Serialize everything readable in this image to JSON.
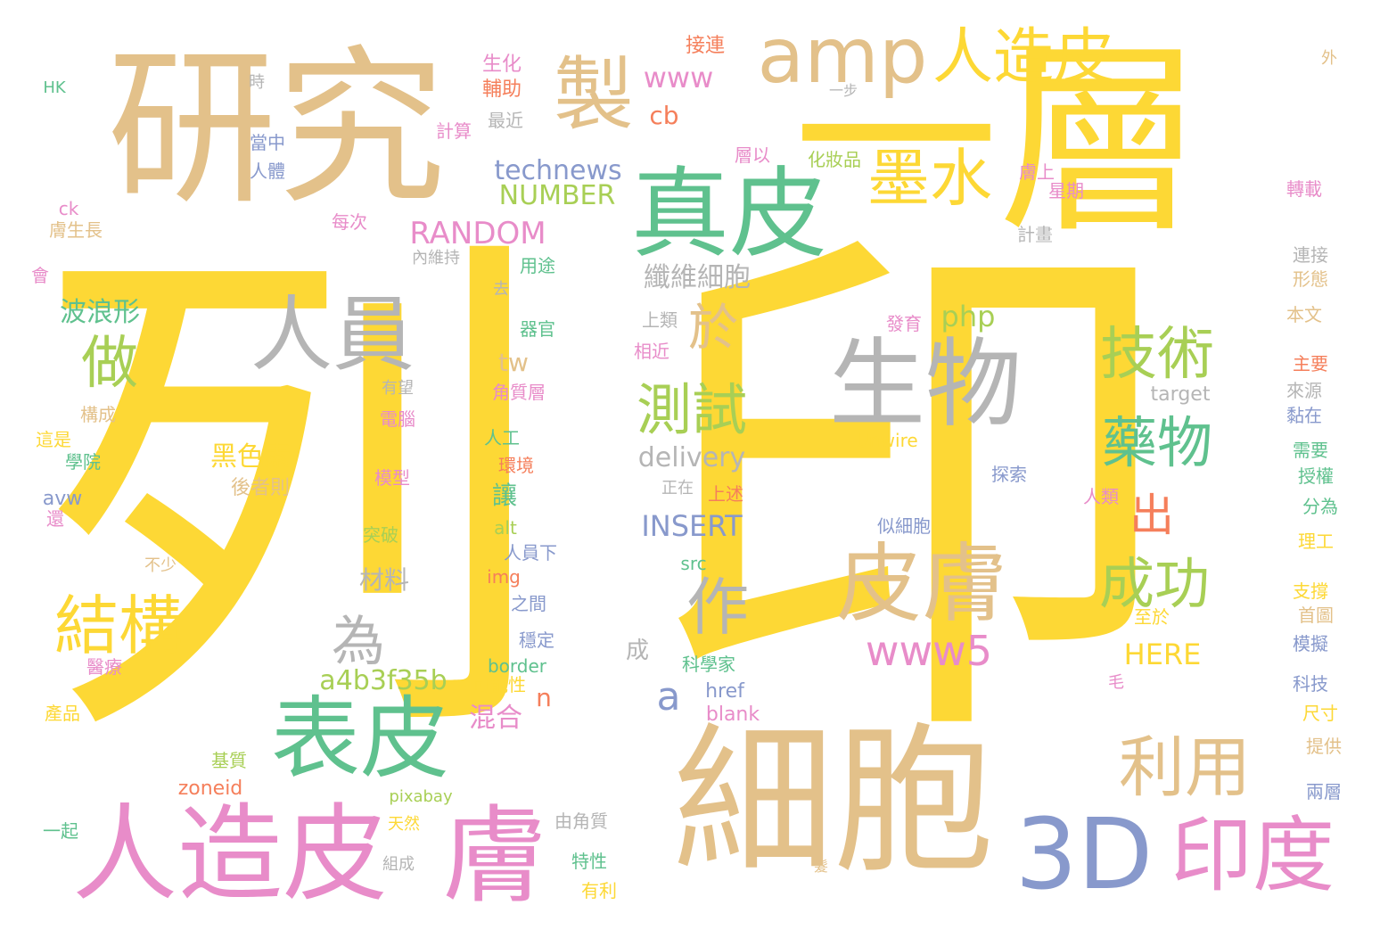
{
  "colors": {
    "yellow": "#fdd835",
    "tan": "#e3c18a",
    "green": "#5fc18e",
    "gray": "#b5b5b5",
    "pink": "#e88cc9",
    "blue": "#8899cc",
    "lime": "#a8cf55",
    "orange": "#f57f5b"
  },
  "words": [
    {
      "text": "列",
      "color": "yellow"
    },
    {
      "text": "印",
      "color": "yellow"
    },
    {
      "text": "一層",
      "color": "yellow"
    },
    {
      "text": "研究",
      "color": "tan"
    },
    {
      "text": "細胞",
      "color": "tan"
    },
    {
      "text": "人造皮",
      "color": "pink"
    },
    {
      "text": "膚",
      "color": "pink"
    },
    {
      "text": "3D",
      "color": "blue"
    },
    {
      "text": "印度",
      "color": "pink"
    },
    {
      "text": "真皮",
      "color": "green"
    },
    {
      "text": "表皮",
      "color": "green"
    },
    {
      "text": "生物",
      "color": "gray"
    },
    {
      "text": "皮膚",
      "color": "tan"
    },
    {
      "text": "製",
      "color": "tan"
    },
    {
      "text": "amp",
      "color": "tan"
    },
    {
      "text": "人造皮",
      "color": "yellow"
    },
    {
      "text": "墨水",
      "color": "yellow"
    },
    {
      "text": "人員",
      "color": "gray"
    },
    {
      "text": "結構",
      "color": "yellow"
    },
    {
      "text": "做",
      "color": "lime"
    },
    {
      "text": "於",
      "color": "tan"
    },
    {
      "text": "測試",
      "color": "lime"
    },
    {
      "text": "技術",
      "color": "lime"
    },
    {
      "text": "藥物",
      "color": "green"
    },
    {
      "text": "成功",
      "color": "lime"
    },
    {
      "text": "利用",
      "color": "tan"
    },
    {
      "text": "作",
      "color": "gray"
    },
    {
      "text": "為",
      "color": "gray"
    },
    {
      "text": "a",
      "color": "blue"
    },
    {
      "text": "www5",
      "color": "pink"
    },
    {
      "text": "出",
      "color": "orange"
    },
    {
      "text": "www",
      "color": "pink"
    },
    {
      "text": "cb",
      "color": "orange"
    },
    {
      "text": "technews",
      "color": "blue"
    },
    {
      "text": "NUMBER",
      "color": "lime"
    },
    {
      "text": "RANDOM",
      "color": "pink"
    },
    {
      "text": "纖維細胞",
      "color": "gray"
    },
    {
      "text": "波浪形",
      "color": "green"
    },
    {
      "text": "php",
      "color": "lime"
    },
    {
      "text": "tw",
      "color": "tan"
    },
    {
      "text": "黑色素",
      "color": "yellow"
    },
    {
      "text": "delivery",
      "color": "gray"
    },
    {
      "text": "INSERT",
      "color": "blue"
    },
    {
      "text": "a4b3f35b",
      "color": "lime"
    },
    {
      "text": "混合",
      "color": "pink"
    },
    {
      "text": "n",
      "color": "orange"
    },
    {
      "text": "HERE",
      "color": "yellow"
    },
    {
      "text": "材料",
      "color": "gray"
    },
    {
      "text": "讓",
      "color": "green"
    },
    {
      "text": "成",
      "color": "gray"
    },
    {
      "text": "後者則",
      "color": "tan"
    },
    {
      "text": "接連",
      "color": "orange"
    },
    {
      "text": "生化",
      "color": "pink"
    },
    {
      "text": "輔助",
      "color": "orange"
    },
    {
      "text": "最近",
      "color": "gray"
    },
    {
      "text": "計算",
      "color": "pink"
    },
    {
      "text": "當中",
      "color": "blue"
    },
    {
      "text": "人體",
      "color": "blue"
    },
    {
      "text": "時",
      "color": "gray"
    },
    {
      "text": "HK",
      "color": "green"
    },
    {
      "text": "外",
      "color": "tan"
    },
    {
      "text": "一步",
      "color": "gray"
    },
    {
      "text": "層以",
      "color": "pink"
    },
    {
      "text": "化妝品",
      "color": "lime"
    },
    {
      "text": "膚上",
      "color": "pink"
    },
    {
      "text": "星期",
      "color": "pink"
    },
    {
      "text": "轉載",
      "color": "pink"
    },
    {
      "text": "ck",
      "color": "pink"
    },
    {
      "text": "膚生長",
      "color": "tan"
    },
    {
      "text": "每次",
      "color": "pink"
    },
    {
      "text": "計畫",
      "color": "gray"
    },
    {
      "text": "連接",
      "color": "gray"
    },
    {
      "text": "形態",
      "color": "tan"
    },
    {
      "text": "會",
      "color": "pink"
    },
    {
      "text": "內維持",
      "color": "gray"
    },
    {
      "text": "用途",
      "color": "green"
    },
    {
      "text": "去",
      "color": "gray"
    },
    {
      "text": "本文",
      "color": "tan"
    },
    {
      "text": "上類",
      "color": "gray"
    },
    {
      "text": "器官",
      "color": "green"
    },
    {
      "text": "發育",
      "color": "pink"
    },
    {
      "text": "相近",
      "color": "pink"
    },
    {
      "text": "主要",
      "color": "orange"
    },
    {
      "text": "target",
      "color": "gray"
    },
    {
      "text": "來源",
      "color": "gray"
    },
    {
      "text": "有望",
      "color": "gray"
    },
    {
      "text": "角質層",
      "color": "pink"
    },
    {
      "text": "黏在",
      "color": "blue"
    },
    {
      "text": "構成",
      "color": "tan"
    },
    {
      "text": "電腦",
      "color": "pink"
    },
    {
      "text": "Unwire",
      "color": "yellow"
    },
    {
      "text": "需要",
      "color": "green"
    },
    {
      "text": "這是",
      "color": "yellow"
    },
    {
      "text": "人工",
      "color": "green"
    },
    {
      "text": "學院",
      "color": "green"
    },
    {
      "text": "環境",
      "color": "orange"
    },
    {
      "text": "授權",
      "color": "green"
    },
    {
      "text": "模型",
      "color": "pink"
    },
    {
      "text": "探索",
      "color": "blue"
    },
    {
      "text": "avw",
      "color": "blue"
    },
    {
      "text": "正在",
      "color": "gray"
    },
    {
      "text": "上述",
      "color": "orange"
    },
    {
      "text": "人類",
      "color": "pink"
    },
    {
      "text": "分為",
      "color": "green"
    },
    {
      "text": "還",
      "color": "pink"
    },
    {
      "text": "突破",
      "color": "lime"
    },
    {
      "text": "alt",
      "color": "lime"
    },
    {
      "text": "似細胞",
      "color": "blue"
    },
    {
      "text": "理工",
      "color": "yellow"
    },
    {
      "text": "不少",
      "color": "tan"
    },
    {
      "text": "人員下",
      "color": "blue"
    },
    {
      "text": "src",
      "color": "green"
    },
    {
      "text": "img",
      "color": "orange"
    },
    {
      "text": "之間",
      "color": "blue"
    },
    {
      "text": "支撐",
      "color": "yellow"
    },
    {
      "text": "首圖",
      "color": "tan"
    },
    {
      "text": "至於",
      "color": "yellow"
    },
    {
      "text": "穩定",
      "color": "blue"
    },
    {
      "text": "模擬",
      "color": "blue"
    },
    {
      "text": "border",
      "color": "green"
    },
    {
      "text": "科學家",
      "color": "green"
    },
    {
      "text": "可能性",
      "color": "yellow"
    },
    {
      "text": "醫療",
      "color": "pink"
    },
    {
      "text": "毛",
      "color": "pink"
    },
    {
      "text": "科技",
      "color": "blue"
    },
    {
      "text": "href",
      "color": "blue"
    },
    {
      "text": "產品",
      "color": "yellow"
    },
    {
      "text": "blank",
      "color": "pink"
    },
    {
      "text": "尺寸",
      "color": "yellow"
    },
    {
      "text": "提供",
      "color": "tan"
    },
    {
      "text": "基質",
      "color": "lime"
    },
    {
      "text": "zoneid",
      "color": "orange"
    },
    {
      "text": "pixabay",
      "color": "lime"
    },
    {
      "text": "兩層",
      "color": "blue"
    },
    {
      "text": "由角質",
      "color": "gray"
    },
    {
      "text": "一起",
      "color": "green"
    },
    {
      "text": "天然",
      "color": "yellow"
    },
    {
      "text": "特性",
      "color": "green"
    },
    {
      "text": "組成",
      "color": "gray"
    },
    {
      "text": "髮",
      "color": "tan"
    },
    {
      "text": "有利",
      "color": "yellow"
    }
  ]
}
